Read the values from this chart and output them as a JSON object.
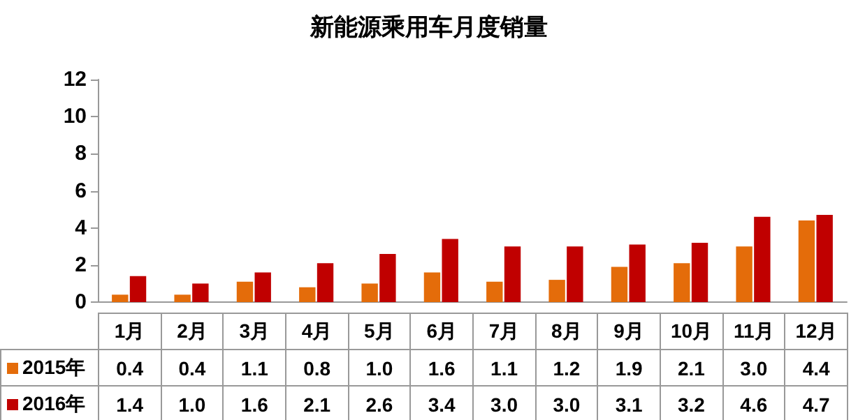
{
  "chart_data": {
    "type": "bar",
    "title": "新能源乘用车月度销量",
    "categories": [
      "1月",
      "2月",
      "3月",
      "4月",
      "5月",
      "6月",
      "7月",
      "8月",
      "9月",
      "10月",
      "11月",
      "12月"
    ],
    "series": [
      {
        "name": "2015年",
        "color": "#e46c0a",
        "values": [
          0.4,
          0.4,
          1.1,
          0.8,
          1.0,
          1.6,
          1.1,
          1.2,
          1.9,
          2.1,
          3.0,
          4.4
        ],
        "value_labels": [
          "0.4",
          "0.4",
          "1.1",
          "0.8",
          "1.0",
          "1.6",
          "1.1",
          "1.2",
          "1.9",
          "2.1",
          "3.0",
          "4.4"
        ]
      },
      {
        "name": "2016年",
        "color": "#c00000",
        "values": [
          1.4,
          1.0,
          1.6,
          2.1,
          2.6,
          3.4,
          3.0,
          3.0,
          3.1,
          3.2,
          4.6,
          4.7
        ],
        "value_labels": [
          "1.4",
          "1.0",
          "1.6",
          "2.1",
          "2.6",
          "3.4",
          "3.0",
          "3.0",
          "3.1",
          "3.2",
          "4.6",
          "4.7"
        ]
      }
    ],
    "ylim": [
      0,
      12
    ],
    "yticks": [
      0,
      2,
      4,
      6,
      8,
      10,
      12
    ],
    "grid": false,
    "legend": "bottom"
  }
}
